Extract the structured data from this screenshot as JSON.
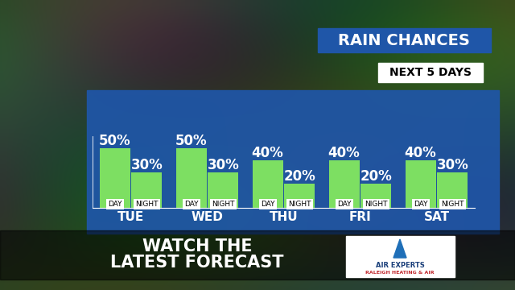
{
  "chart_data": {
    "type": "bar",
    "title": "RAIN CHANCES",
    "subtitle": "NEXT 5 DAYS",
    "categories": [
      "TUE",
      "WED",
      "THU",
      "FRI",
      "SAT"
    ],
    "series": [
      {
        "name": "DAY",
        "color": "#7ddf62",
        "values": [
          50,
          50,
          40,
          40,
          40
        ],
        "value_labels": [
          "50%",
          "50%",
          "40%",
          "40%",
          "40%"
        ]
      },
      {
        "name": "NIGHT",
        "color": "#7ddf62",
        "values": [
          30,
          30,
          20,
          20,
          30
        ],
        "value_labels": [
          "30%",
          "30%",
          "20%",
          "20%",
          "30%"
        ]
      }
    ],
    "ylim": [
      0,
      60
    ],
    "data_labels": true,
    "tick_labels": "x",
    "annotations": [
      "WATCH THE\nLATEST FORECAST",
      "AIR EXPERTS",
      "RALEIGH HEATING & AIR"
    ]
  }
}
